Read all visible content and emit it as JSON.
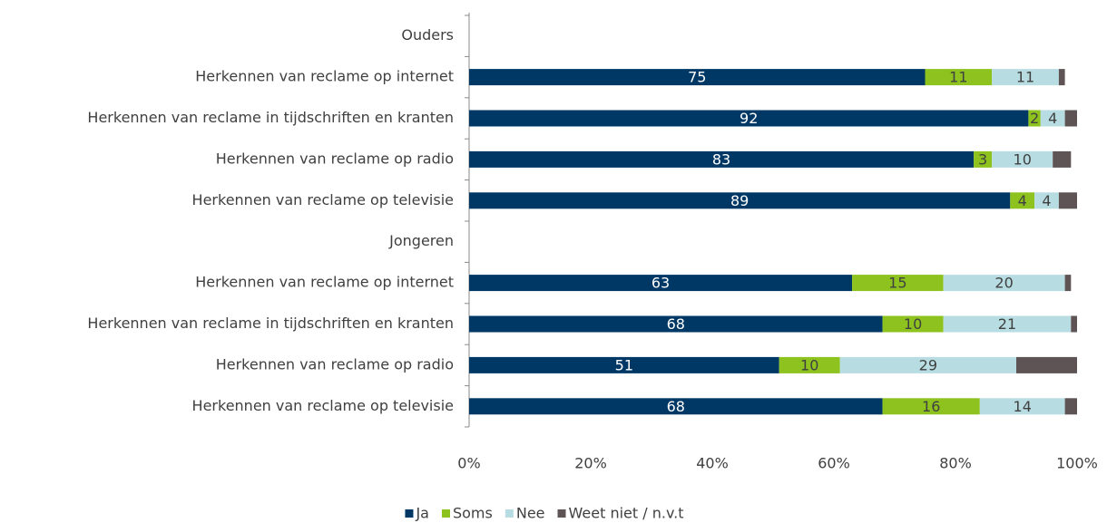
{
  "chart_data": {
    "type": "bar",
    "orientation": "horizontal",
    "stacked": true,
    "categories": [
      "Ouders",
      "Herkennen van reclame op internet",
      "Herkennen van reclame in  tijdschriften en kranten",
      "Herkennen van reclame op radio",
      "Herkennen van reclame op televisie",
      "Jongeren",
      "Herkennen van reclame op internet",
      "Herkennen van reclame in  tijdschriften en kranten",
      "Herkennen van reclame op radio",
      "Herkennen van reclame op televisie"
    ],
    "series": [
      {
        "name": "Ja",
        "color": "#003865",
        "values": [
          null,
          75,
          92,
          83,
          89,
          null,
          63,
          68,
          51,
          68
        ]
      },
      {
        "name": "Soms",
        "color": "#8dc21f",
        "values": [
          null,
          11,
          2,
          3,
          4,
          null,
          15,
          10,
          10,
          16
        ]
      },
      {
        "name": "Nee",
        "color": "#b7dde3",
        "values": [
          null,
          11,
          4,
          10,
          4,
          null,
          20,
          21,
          29,
          14
        ]
      },
      {
        "name": "Weet niet / n.v.t",
        "color": "#5f5455",
        "values": [
          null,
          1,
          2,
          3,
          3,
          null,
          1,
          1,
          10,
          2
        ]
      }
    ],
    "labeled_series": [
      0,
      1,
      2
    ],
    "xlim": [
      0,
      100
    ],
    "xticks": [
      {
        "value": 0,
        "label": "0%"
      },
      {
        "value": 20,
        "label": "20%"
      },
      {
        "value": 40,
        "label": "40%"
      },
      {
        "value": 60,
        "label": "60%"
      },
      {
        "value": 80,
        "label": "80%"
      },
      {
        "value": 100,
        "label": "100%"
      }
    ],
    "legend": "bottom"
  }
}
